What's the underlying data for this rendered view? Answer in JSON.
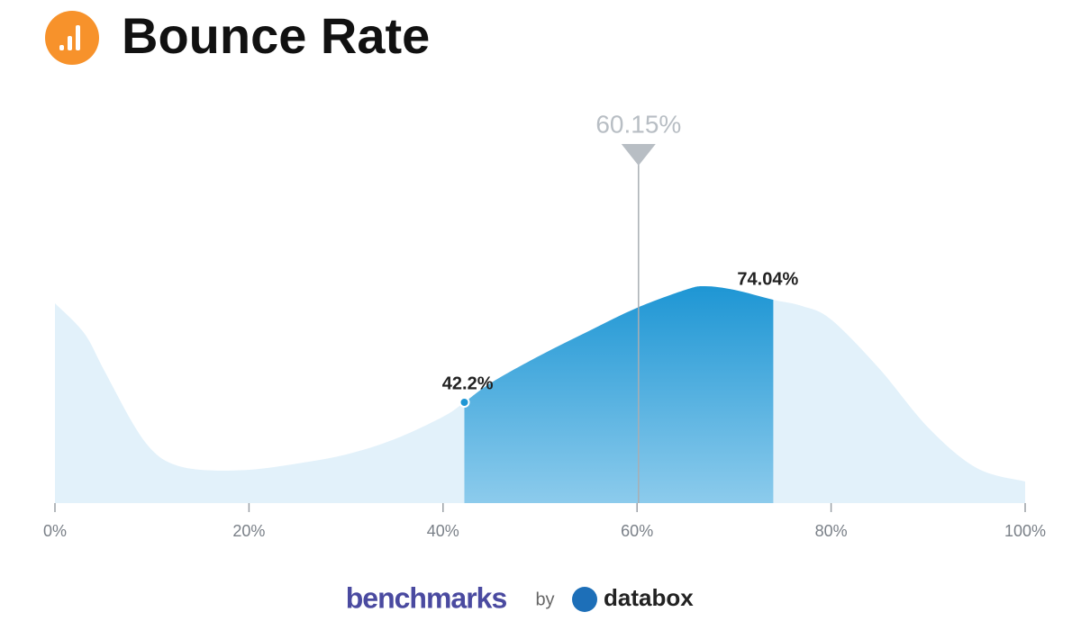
{
  "chart_data": {
    "type": "density",
    "title": "Bounce Rate",
    "x": [
      0,
      3,
      5,
      8,
      10,
      12,
      15,
      20,
      25,
      30,
      35,
      40,
      42.2,
      45,
      50,
      55,
      60,
      65,
      67,
      70,
      74,
      77,
      80,
      85,
      90,
      95,
      100
    ],
    "values": [
      222,
      189,
      149,
      89,
      59,
      44,
      37,
      37,
      44,
      54,
      71,
      96,
      112,
      134,
      164,
      191,
      217,
      237,
      241,
      237,
      226,
      219,
      204,
      149,
      84,
      39,
      24
    ],
    "xlim": [
      0,
      100
    ],
    "xticks": [
      {
        "value": 0,
        "label": "0%"
      },
      {
        "value": 20,
        "label": "20%"
      },
      {
        "value": 40,
        "label": "40%"
      },
      {
        "value": 60,
        "label": "60%"
      },
      {
        "value": 80,
        "label": "80%"
      },
      {
        "value": 100,
        "label": "100%"
      }
    ],
    "color": "#1e96d4",
    "annotations": [
      {
        "value": 60.15,
        "label": "60.15%"
      },
      {
        "value": 42.2,
        "label": "42.2%"
      },
      {
        "value": 74.04,
        "label": "74.04%"
      }
    ]
  },
  "footer": {
    "brand": "benchmarks",
    "by": "by",
    "logo": "databox"
  }
}
